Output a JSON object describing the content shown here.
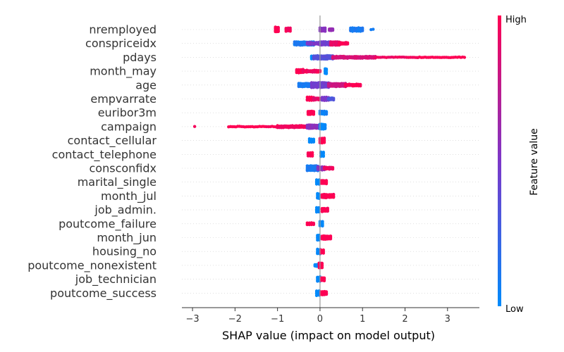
{
  "chart_data": {
    "type": "scatter",
    "subtype": "shap-beeswarm",
    "xlabel": "SHAP value (impact on model output)",
    "x_ticks": [
      -3,
      -2,
      -1,
      0,
      1,
      2,
      3
    ],
    "xlim": [
      -3.25,
      3.75
    ],
    "grid": false,
    "colorbar": {
      "title": "Feature value",
      "high_label": "High",
      "low_label": "Low",
      "low_color": "#008bfb",
      "mid_color": "#7c37c9",
      "high_color": "#ff0052"
    },
    "features": [
      {
        "name": "nremployed",
        "clusters": [
          {
            "x": -1.05,
            "xmax": -0.98,
            "v": 1.0,
            "w": 4
          },
          {
            "x": -0.8,
            "xmax": -0.7,
            "v": 0.95,
            "w": 3
          },
          {
            "x": 0.0,
            "xmax": 0.12,
            "v": 0.55,
            "w": 3
          },
          {
            "x": 0.22,
            "xmax": 0.3,
            "v": 0.6,
            "w": 2
          },
          {
            "x": 0.72,
            "xmax": 1.0,
            "v": 0.1,
            "w": 3
          },
          {
            "x": 1.2,
            "xmax": 1.25,
            "v": 0.05,
            "w": 1
          }
        ]
      },
      {
        "name": "conspriceidx",
        "clusters": [
          {
            "x": -0.6,
            "xmax": -0.15,
            "v": 0.1,
            "w": 3
          },
          {
            "x": -0.3,
            "xmax": 0.0,
            "v": 0.5,
            "w": 2
          },
          {
            "x": 0.0,
            "xmax": 0.25,
            "v": 0.45,
            "w": 3
          },
          {
            "x": 0.25,
            "xmax": 0.45,
            "v": 0.9,
            "w": 3
          },
          {
            "x": 0.45,
            "xmax": 0.65,
            "v": 1.0,
            "w": 2
          }
        ]
      },
      {
        "name": "pdays",
        "clusters": [
          {
            "x": -0.2,
            "xmax": -0.15,
            "v": 0.0,
            "w": 3
          },
          {
            "x": -0.15,
            "xmax": 0.3,
            "v": 0.35,
            "w": 3
          },
          {
            "x": 0.3,
            "xmax": 1.3,
            "v": 0.85,
            "w": 2
          },
          {
            "x": 1.3,
            "xmax": 2.3,
            "v": 0.95,
            "w": 1
          },
          {
            "x": 2.3,
            "xmax": 3.4,
            "v": 1.0,
            "w": 1
          }
        ]
      },
      {
        "name": "month_may",
        "clusters": [
          {
            "x": -0.55,
            "xmax": -0.4,
            "v": 1.0,
            "w": 3
          },
          {
            "x": -0.4,
            "xmax": 0.0,
            "v": 0.95,
            "w": 2
          },
          {
            "x": 0.12,
            "xmax": 0.15,
            "v": 0.0,
            "w": 4
          }
        ]
      },
      {
        "name": "age",
        "clusters": [
          {
            "x": -0.5,
            "xmax": -0.2,
            "v": 0.1,
            "w": 3
          },
          {
            "x": -0.2,
            "xmax": 0.2,
            "v": 0.45,
            "w": 4
          },
          {
            "x": 0.2,
            "xmax": 0.6,
            "v": 0.8,
            "w": 3
          },
          {
            "x": 0.6,
            "xmax": 0.95,
            "v": 1.0,
            "w": 2
          }
        ]
      },
      {
        "name": "empvarrate",
        "clusters": [
          {
            "x": -0.3,
            "xmax": -0.15,
            "v": 1.0,
            "w": 3
          },
          {
            "x": -0.15,
            "xmax": 0.05,
            "v": 0.9,
            "w": 2
          },
          {
            "x": 0.05,
            "xmax": 0.2,
            "v": 0.5,
            "w": 3
          },
          {
            "x": 0.2,
            "xmax": 0.32,
            "v": 0.3,
            "w": 2
          }
        ]
      },
      {
        "name": "euribor3m",
        "clusters": [
          {
            "x": -0.28,
            "xmax": -0.15,
            "v": 1.0,
            "w": 3
          },
          {
            "x": 0.0,
            "xmax": 0.15,
            "v": 0.05,
            "w": 3
          }
        ]
      },
      {
        "name": "campaign",
        "clusters": [
          {
            "x": -2.95,
            "xmax": -2.95,
            "v": 1.0,
            "w": 1
          },
          {
            "x": -2.15,
            "xmax": -1.0,
            "v": 1.0,
            "w": 1
          },
          {
            "x": -1.0,
            "xmax": -0.3,
            "v": 0.95,
            "w": 2
          },
          {
            "x": -0.3,
            "xmax": 0.0,
            "v": 0.55,
            "w": 3
          },
          {
            "x": 0.0,
            "xmax": 0.12,
            "v": 0.0,
            "w": 4
          }
        ]
      },
      {
        "name": "contact_cellular",
        "clusters": [
          {
            "x": -0.25,
            "xmax": -0.15,
            "v": 0.0,
            "w": 3
          },
          {
            "x": 0.0,
            "xmax": 0.1,
            "v": 1.0,
            "w": 4
          }
        ]
      },
      {
        "name": "contact_telephone",
        "clusters": [
          {
            "x": -0.28,
            "xmax": -0.18,
            "v": 1.0,
            "w": 3
          },
          {
            "x": 0.02,
            "xmax": 0.08,
            "v": 0.0,
            "w": 4
          }
        ]
      },
      {
        "name": "consconfidx",
        "clusters": [
          {
            "x": -0.3,
            "xmax": -0.05,
            "v": 0.1,
            "w": 4
          },
          {
            "x": -0.05,
            "xmax": 0.1,
            "v": 0.55,
            "w": 3
          },
          {
            "x": 0.1,
            "xmax": 0.3,
            "v": 0.95,
            "w": 2
          }
        ]
      },
      {
        "name": "marital_single",
        "clusters": [
          {
            "x": -0.08,
            "xmax": -0.02,
            "v": 0.0,
            "w": 4
          },
          {
            "x": 0.03,
            "xmax": 0.15,
            "v": 1.0,
            "w": 3
          }
        ]
      },
      {
        "name": "month_jul",
        "clusters": [
          {
            "x": -0.06,
            "xmax": -0.02,
            "v": 0.0,
            "w": 4
          },
          {
            "x": 0.05,
            "xmax": 0.32,
            "v": 1.0,
            "w": 3
          }
        ]
      },
      {
        "name": "job_admin.",
        "clusters": [
          {
            "x": -0.08,
            "xmax": -0.03,
            "v": 0.0,
            "w": 4
          },
          {
            "x": 0.05,
            "xmax": 0.18,
            "v": 1.0,
            "w": 3
          }
        ]
      },
      {
        "name": "poutcome_failure",
        "clusters": [
          {
            "x": -0.3,
            "xmax": -0.15,
            "v": 1.0,
            "w": 2
          },
          {
            "x": 0.0,
            "xmax": 0.06,
            "v": 0.0,
            "w": 4
          }
        ]
      },
      {
        "name": "month_jun",
        "clusters": [
          {
            "x": -0.06,
            "xmax": -0.02,
            "v": 0.0,
            "w": 4
          },
          {
            "x": 0.05,
            "xmax": 0.25,
            "v": 1.0,
            "w": 3
          }
        ]
      },
      {
        "name": "housing_no",
        "clusters": [
          {
            "x": -0.06,
            "xmax": 0.0,
            "v": 0.0,
            "w": 4
          },
          {
            "x": 0.02,
            "xmax": 0.08,
            "v": 1.0,
            "w": 3
          }
        ]
      },
      {
        "name": "poutcome_nonexistent",
        "clusters": [
          {
            "x": -0.12,
            "xmax": -0.05,
            "v": 0.0,
            "w": 2
          },
          {
            "x": -0.02,
            "xmax": 0.05,
            "v": 1.0,
            "w": 4
          }
        ]
      },
      {
        "name": "job_technician",
        "clusters": [
          {
            "x": -0.06,
            "xmax": 0.0,
            "v": 0.0,
            "w": 4
          },
          {
            "x": 0.03,
            "xmax": 0.1,
            "v": 1.0,
            "w": 3
          }
        ]
      },
      {
        "name": "poutcome_success",
        "clusters": [
          {
            "x": -0.08,
            "xmax": -0.02,
            "v": 0.0,
            "w": 4
          },
          {
            "x": 0.02,
            "xmax": 0.15,
            "v": 1.0,
            "w": 3
          }
        ]
      }
    ]
  }
}
